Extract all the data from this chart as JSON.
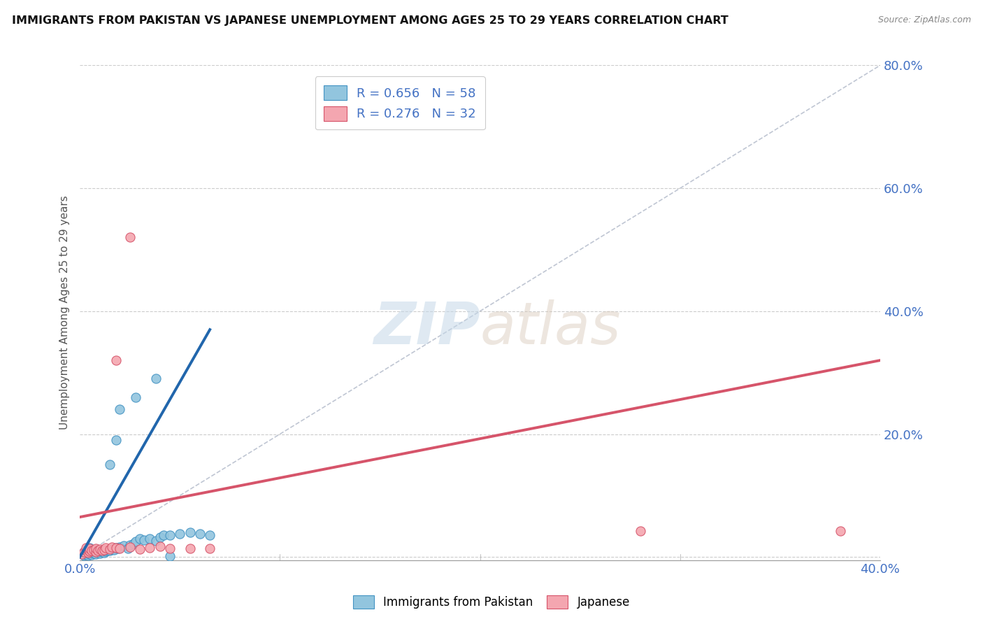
{
  "title": "IMMIGRANTS FROM PAKISTAN VS JAPANESE UNEMPLOYMENT AMONG AGES 25 TO 29 YEARS CORRELATION CHART",
  "source": "Source: ZipAtlas.com",
  "ylabel": "Unemployment Among Ages 25 to 29 years",
  "xlim": [
    0.0,
    0.4
  ],
  "ylim": [
    -0.005,
    0.8
  ],
  "legend_blue_r": "R = 0.656",
  "legend_blue_n": "N = 58",
  "legend_pink_r": "R = 0.276",
  "legend_pink_n": "N = 32",
  "blue_color": "#92c5de",
  "pink_color": "#f4a6b0",
  "blue_edge_color": "#4393c3",
  "pink_edge_color": "#d6546a",
  "blue_line_color": "#2166ac",
  "pink_line_color": "#d6546a",
  "blue_scatter": [
    [
      0.001,
      0.005
    ],
    [
      0.002,
      0.003
    ],
    [
      0.002,
      0.008
    ],
    [
      0.003,
      0.004
    ],
    [
      0.003,
      0.007
    ],
    [
      0.003,
      0.012
    ],
    [
      0.004,
      0.003
    ],
    [
      0.004,
      0.006
    ],
    [
      0.004,
      0.01
    ],
    [
      0.005,
      0.005
    ],
    [
      0.005,
      0.008
    ],
    [
      0.005,
      0.015
    ],
    [
      0.006,
      0.004
    ],
    [
      0.006,
      0.007
    ],
    [
      0.006,
      0.01
    ],
    [
      0.007,
      0.006
    ],
    [
      0.007,
      0.009
    ],
    [
      0.008,
      0.005
    ],
    [
      0.008,
      0.008
    ],
    [
      0.008,
      0.012
    ],
    [
      0.009,
      0.007
    ],
    [
      0.009,
      0.01
    ],
    [
      0.01,
      0.006
    ],
    [
      0.01,
      0.009
    ],
    [
      0.011,
      0.008
    ],
    [
      0.011,
      0.012
    ],
    [
      0.012,
      0.007
    ],
    [
      0.012,
      0.011
    ],
    [
      0.013,
      0.009
    ],
    [
      0.014,
      0.01
    ],
    [
      0.015,
      0.011
    ],
    [
      0.016,
      0.013
    ],
    [
      0.017,
      0.012
    ],
    [
      0.018,
      0.015
    ],
    [
      0.019,
      0.014
    ],
    [
      0.02,
      0.016
    ],
    [
      0.022,
      0.018
    ],
    [
      0.024,
      0.014
    ],
    [
      0.025,
      0.02
    ],
    [
      0.027,
      0.022
    ],
    [
      0.028,
      0.025
    ],
    [
      0.03,
      0.03
    ],
    [
      0.032,
      0.028
    ],
    [
      0.035,
      0.03
    ],
    [
      0.038,
      0.027
    ],
    [
      0.04,
      0.032
    ],
    [
      0.042,
      0.035
    ],
    [
      0.045,
      0.035
    ],
    [
      0.05,
      0.038
    ],
    [
      0.055,
      0.04
    ],
    [
      0.06,
      0.038
    ],
    [
      0.065,
      0.035
    ],
    [
      0.028,
      0.26
    ],
    [
      0.038,
      0.29
    ],
    [
      0.02,
      0.24
    ],
    [
      0.015,
      0.15
    ],
    [
      0.018,
      0.19
    ],
    [
      0.045,
      0.0015
    ]
  ],
  "pink_scatter": [
    [
      0.001,
      0.005
    ],
    [
      0.002,
      0.008
    ],
    [
      0.003,
      0.01
    ],
    [
      0.003,
      0.015
    ],
    [
      0.004,
      0.007
    ],
    [
      0.004,
      0.012
    ],
    [
      0.005,
      0.009
    ],
    [
      0.005,
      0.014
    ],
    [
      0.006,
      0.01
    ],
    [
      0.007,
      0.012
    ],
    [
      0.008,
      0.008
    ],
    [
      0.008,
      0.014
    ],
    [
      0.009,
      0.011
    ],
    [
      0.01,
      0.013
    ],
    [
      0.011,
      0.01
    ],
    [
      0.012,
      0.012
    ],
    [
      0.013,
      0.015
    ],
    [
      0.015,
      0.013
    ],
    [
      0.016,
      0.016
    ],
    [
      0.018,
      0.015
    ],
    [
      0.02,
      0.014
    ],
    [
      0.025,
      0.016
    ],
    [
      0.03,
      0.013
    ],
    [
      0.035,
      0.015
    ],
    [
      0.04,
      0.017
    ],
    [
      0.045,
      0.014
    ],
    [
      0.055,
      0.014
    ],
    [
      0.065,
      0.014
    ],
    [
      0.025,
      0.52
    ],
    [
      0.28,
      0.042
    ],
    [
      0.38,
      0.042
    ],
    [
      0.018,
      0.32
    ]
  ],
  "blue_trend_x": [
    0.0,
    0.065
  ],
  "blue_trend_y": [
    0.0,
    0.37
  ],
  "pink_trend_x": [
    0.0,
    0.4
  ],
  "pink_trend_y": [
    0.065,
    0.32
  ],
  "diag_line_x": [
    0.0,
    0.4
  ],
  "diag_line_y": [
    0.0,
    0.8
  ],
  "watermark_zip": "ZIP",
  "watermark_atlas": "atlas",
  "background_color": "#ffffff",
  "grid_color": "#cccccc",
  "tick_color": "#4472c4",
  "label_color": "#555555"
}
